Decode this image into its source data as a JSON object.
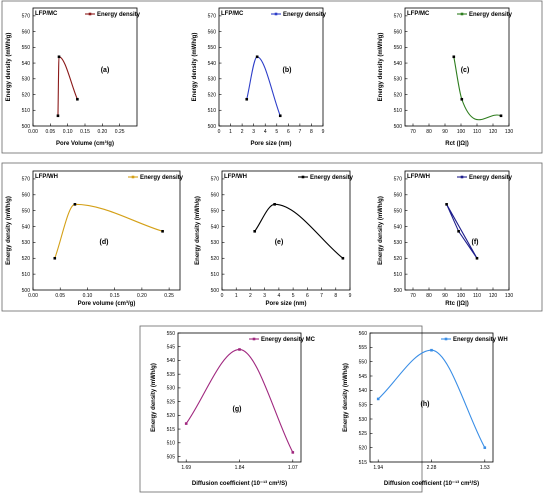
{
  "chart_data": [
    {
      "id": "a",
      "type": "line",
      "title": "LFP/MC",
      "panel_label": "(a)",
      "xlabel": "Pore Volume (cm³/g)",
      "ylabel": "Energy density (mWh/g)",
      "xlim": [
        0,
        0.3
      ],
      "xticks": [
        0.0,
        0.05,
        0.1,
        0.15,
        0.2,
        0.25
      ],
      "xtick_labels": [
        "0.00",
        "0.05",
        "0.10",
        "0.15",
        "0.20",
        "0.25"
      ],
      "ylim": [
        500,
        575
      ],
      "yticks": [
        500,
        510,
        520,
        530,
        540,
        550,
        560,
        570
      ],
      "series": [
        {
          "name": "Energy density",
          "color": "#8b1a1a",
          "x": [
            0.072,
            0.075,
            0.128
          ],
          "y": [
            506.5,
            544,
            517
          ]
        }
      ]
    },
    {
      "id": "b",
      "type": "line",
      "title": "LFP/MC",
      "panel_label": "(b)",
      "xlabel": "Pore size (nm)",
      "ylabel": "Energy density (mWh/g)",
      "xlim": [
        0,
        9
      ],
      "xticks": [
        0,
        1,
        2,
        3,
        4,
        5,
        6,
        7,
        8,
        9
      ],
      "xtick_labels": [
        "0",
        "1",
        "2",
        "3",
        "4",
        "5",
        "6",
        "7",
        "8",
        "9"
      ],
      "ylim": [
        500,
        575
      ],
      "yticks": [
        500,
        510,
        520,
        530,
        540,
        550,
        560,
        570
      ],
      "series": [
        {
          "name": "Energy density",
          "color": "#2d3ec9",
          "x": [
            2.4,
            3.3,
            5.3
          ],
          "y": [
            517,
            544,
            506.5
          ]
        }
      ]
    },
    {
      "id": "c",
      "type": "line",
      "title": "LFP/MC",
      "panel_label": "(c)",
      "xlabel": "Rct (|Ω|)",
      "ylabel": "Energy density (mWh/g)",
      "xlim": [
        65,
        130
      ],
      "xticks": [
        70,
        80,
        90,
        100,
        110,
        120,
        130
      ],
      "xtick_labels": [
        "70",
        "80",
        "90",
        "100",
        "110",
        "120",
        "130"
      ],
      "ylim": [
        500,
        575
      ],
      "yticks": [
        500,
        510,
        520,
        530,
        540,
        550,
        560,
        570
      ],
      "series": [
        {
          "name": "Energy density",
          "color": "#2e7d1e",
          "x": [
            125,
            95.5,
            100.5
          ],
          "y": [
            506.5,
            544,
            517
          ]
        }
      ]
    },
    {
      "id": "d",
      "type": "line",
      "title": "LFP/WH",
      "panel_label": "(d)",
      "xlabel": "Pore volume (cm³/g)",
      "ylabel": "Energy density (mWh/g)",
      "xlim": [
        0,
        0.27
      ],
      "xticks": [
        0.0,
        0.05,
        0.1,
        0.15,
        0.2,
        0.25
      ],
      "xtick_labels": [
        "0.00",
        "0.05",
        "0.10",
        "0.15",
        "0.20",
        "0.25"
      ],
      "ylim": [
        500,
        575
      ],
      "yticks": [
        500,
        510,
        520,
        530,
        540,
        550,
        560,
        570
      ],
      "series": [
        {
          "name": "Energy density",
          "color": "#d4a017",
          "x": [
            0.04,
            0.077,
            0.238
          ],
          "y": [
            520,
            554,
            537
          ]
        }
      ]
    },
    {
      "id": "e",
      "type": "line",
      "title": "LFP/WH",
      "panel_label": "(e)",
      "xlabel": "Pore size (nm)",
      "ylabel": "Energy density (mWh/g)",
      "xlim": [
        0,
        9
      ],
      "xticks": [
        0,
        1,
        2,
        3,
        4,
        5,
        6,
        7,
        8,
        9
      ],
      "xtick_labels": [
        "0",
        "1",
        "2",
        "3",
        "4",
        "5",
        "6",
        "7",
        "8",
        "9"
      ],
      "ylim": [
        500,
        575
      ],
      "yticks": [
        500,
        510,
        520,
        530,
        540,
        550,
        560,
        570
      ],
      "series": [
        {
          "name": "Energy density",
          "color": "#000000",
          "x": [
            2.3,
            3.7,
            8.5
          ],
          "y": [
            537,
            554,
            520
          ]
        }
      ]
    },
    {
      "id": "f",
      "type": "line",
      "title": "LFP/WH",
      "panel_label": "(f)",
      "xlabel": "Rtc (|Ω|)",
      "ylabel": "Energy density (mWh/g)",
      "xlim": [
        65,
        130
      ],
      "xticks": [
        70,
        80,
        90,
        100,
        110,
        120,
        130
      ],
      "xtick_labels": [
        "70",
        "80",
        "90",
        "100",
        "110",
        "120",
        "130"
      ],
      "ylim": [
        500,
        575
      ],
      "yticks": [
        500,
        510,
        520,
        530,
        540,
        550,
        560,
        570
      ],
      "series": [
        {
          "name": "Energy density",
          "color": "#1e1e8c",
          "x": [
            91,
            110,
            98.5,
            91
          ],
          "y": [
            554,
            520,
            537,
            554
          ]
        }
      ]
    },
    {
      "id": "g",
      "type": "line",
      "title": "",
      "panel_label": "(g)",
      "xlabel": "Diffusion coefficient (10⁻¹³ cm²/S)",
      "ylabel": "Energy density (mWh/g)",
      "xlim": [
        0,
        3
      ],
      "xticks": [
        0.2,
        1.5,
        2.8
      ],
      "xtick_labels": [
        "1.69",
        "1.84",
        "1.07"
      ],
      "ylim": [
        503,
        550
      ],
      "yticks": [
        505,
        510,
        515,
        520,
        525,
        530,
        535,
        540,
        545,
        550
      ],
      "series": [
        {
          "name": "Energy density MC",
          "color": "#a0287f",
          "x": [
            0.2,
            1.5,
            2.8
          ],
          "y": [
            517,
            544,
            506.5
          ]
        }
      ]
    },
    {
      "id": "h",
      "type": "line",
      "title": "",
      "panel_label": "(h)",
      "xlabel": "Diffusion coefficient (10⁻¹³ cm²/S)",
      "ylabel": "Energy density (mWh/g)",
      "xlim": [
        0,
        3
      ],
      "xticks": [
        0.2,
        1.5,
        2.8
      ],
      "xtick_labels": [
        "1.94",
        "2.28",
        "1.53"
      ],
      "ylim": [
        515,
        560
      ],
      "yticks": [
        515,
        520,
        525,
        530,
        535,
        540,
        545,
        550,
        555,
        560
      ],
      "series": [
        {
          "name": "Energy density WH",
          "color": "#3a8ee6",
          "x": [
            0.2,
            1.5,
            2.8
          ],
          "y": [
            537,
            554,
            520
          ]
        }
      ]
    }
  ]
}
